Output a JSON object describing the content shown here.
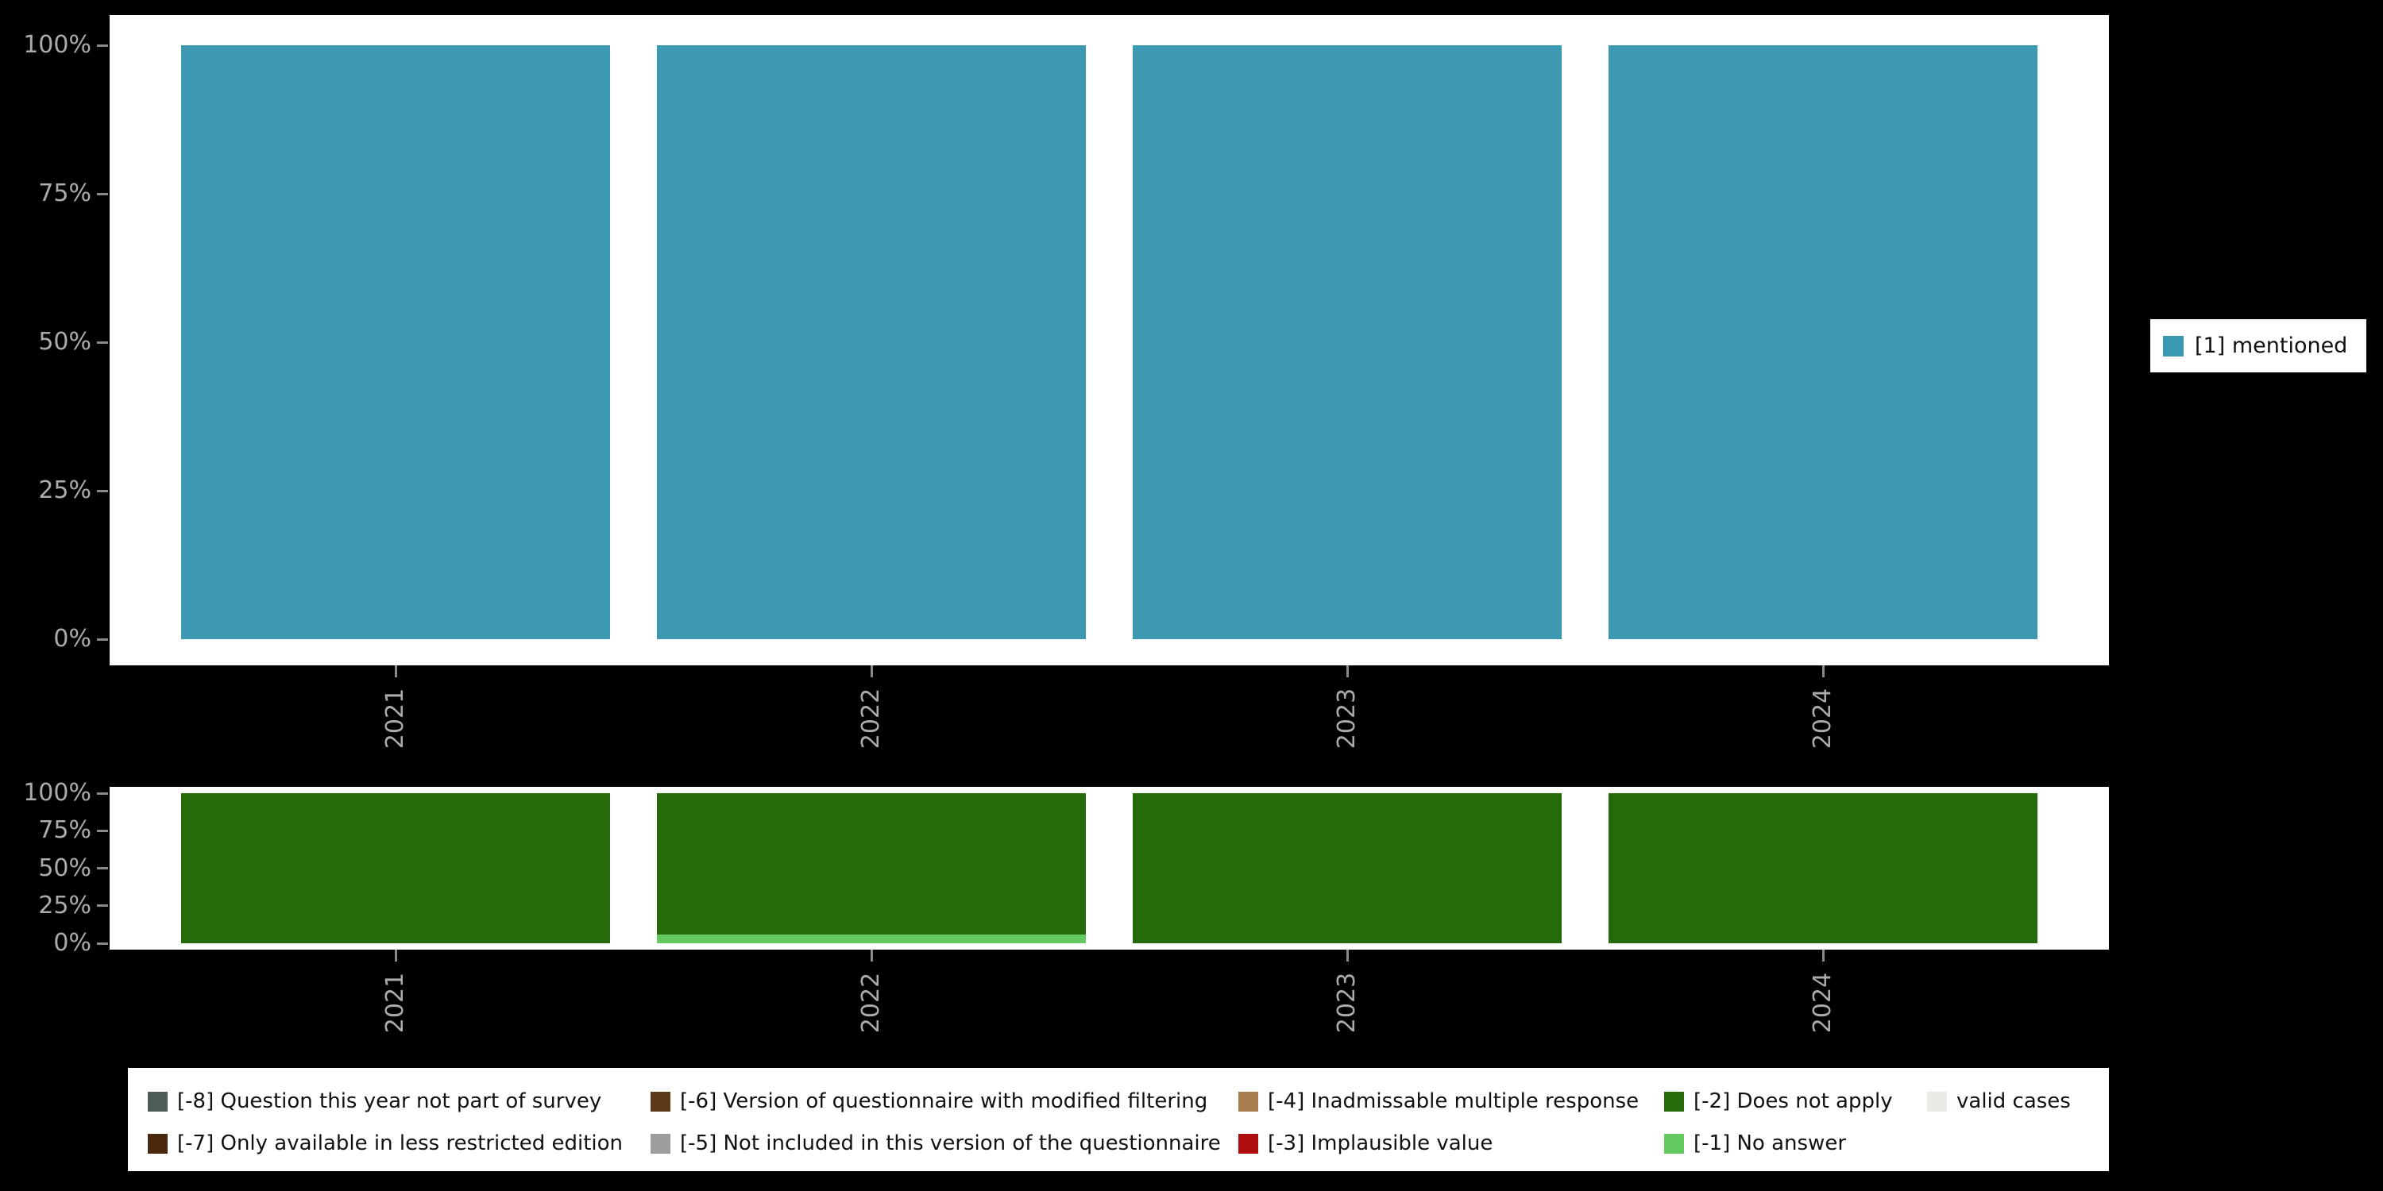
{
  "page": {
    "background": "#000000",
    "panel_background": "#ffffff"
  },
  "axes": {
    "tick_label_color": "#ababab",
    "ytick_labels": [
      "0%",
      "25%",
      "50%",
      "75%",
      "100%"
    ],
    "xtick_labels": [
      "2021",
      "2022",
      "2023",
      "2024"
    ]
  },
  "legend": {
    "label": "[1] mentioned",
    "color": "#3d99b1",
    "position": "right"
  },
  "missing_legend": {
    "rows": [
      [
        {
          "label": "[-8] Question this year not part of survey",
          "color": "#4d5d55"
        },
        {
          "label": "[-6] Version of questionnaire with modified filtering",
          "color": "#5c3a1a"
        },
        {
          "label": "[-4] Inadmissable multiple response",
          "color": "#a87c4f"
        },
        {
          "label": "[-2] Does not apply",
          "color": "#266b09"
        },
        {
          "label": "valid cases",
          "color": "#ebe9e3"
        }
      ],
      [
        {
          "label": "[-7] Only available in less restricted edition",
          "color": "#49280e"
        },
        {
          "label": "[-5] Not included in this version of the questionnaire",
          "color": "#9d9d9d"
        },
        {
          "label": "[-3] Implausible value",
          "color": "#ad0f0f"
        },
        {
          "label": "[-1] No answer",
          "color": "#63ca5f"
        }
      ]
    ]
  },
  "chart_data": [
    {
      "type": "bar",
      "stacked": true,
      "unit": "percent",
      "categories": [
        "2021",
        "2022",
        "2023",
        "2024"
      ],
      "series": [
        {
          "name": "[1] mentioned",
          "color": "#3d99b1",
          "values": [
            100,
            100,
            100,
            100
          ]
        }
      ],
      "title": "",
      "xlabel": "",
      "ylabel": "",
      "ylim": [
        0,
        100
      ],
      "yticks": [
        "0%",
        "25%",
        "50%",
        "75%",
        "100%"
      ],
      "grid": false,
      "legend_position": "right"
    },
    {
      "type": "bar",
      "stacked": true,
      "unit": "percent",
      "categories": [
        "2021",
        "2022",
        "2023",
        "2024"
      ],
      "series": [
        {
          "name": "[-1] No answer",
          "color": "#63ca5f",
          "values": [
            0,
            6,
            0,
            0
          ]
        },
        {
          "name": "[-2] Does not apply",
          "color": "#266b09",
          "values": [
            100,
            94,
            100,
            100
          ]
        }
      ],
      "title": "",
      "xlabel": "",
      "ylabel": "",
      "ylim": [
        0,
        100
      ],
      "yticks": [
        "0%",
        "25%",
        "50%",
        "75%",
        "100%"
      ],
      "grid": false,
      "legend_position": "none"
    }
  ]
}
